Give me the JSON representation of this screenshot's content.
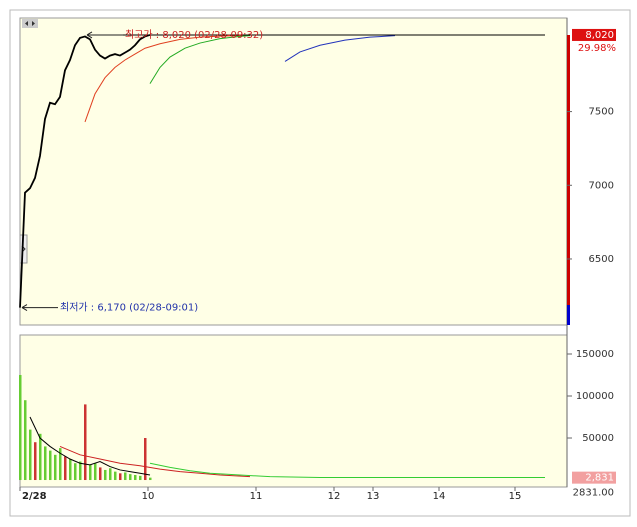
{
  "chart_data": [
    {
      "type": "line",
      "panel": "price",
      "xlim": [
        0,
        109.4
      ],
      "ylim": [
        6052,
        8135
      ],
      "xticks": [
        {
          "value": 0,
          "label": "2/28"
        },
        {
          "value": 25.6,
          "label": "10"
        },
        {
          "value": 47.2,
          "label": "11"
        },
        {
          "value": 62.8,
          "label": "12"
        },
        {
          "value": 70.6,
          "label": "13"
        },
        {
          "value": 83.8,
          "label": "14"
        },
        {
          "value": 99,
          "label": "15"
        }
      ],
      "yticks": [
        6500,
        7000,
        7500
      ],
      "last_price": {
        "value": 8020,
        "label": "8,020"
      },
      "change_label": "29.98%",
      "annotations": [
        {
          "text": "최고가 : 8,020 (02/28-09:32)",
          "x": 13,
          "value": 8020,
          "color": "#cc2222"
        },
        {
          "text": "최저가 : 6,170 (02/28-09:01)",
          "x": 0,
          "value": 6170,
          "color": "#2233aa"
        }
      ],
      "series": [
        {
          "color": "#000000",
          "x": [
            0,
            1,
            2,
            3,
            4,
            5,
            6,
            7,
            8,
            9,
            10,
            11,
            12,
            13,
            14,
            15,
            16,
            17,
            18,
            19,
            20,
            21,
            22,
            23,
            24,
            25,
            26
          ],
          "values": [
            6170,
            6950,
            6980,
            7050,
            7200,
            7450,
            7560,
            7550,
            7600,
            7780,
            7850,
            7950,
            8000,
            8010,
            7990,
            7920,
            7880,
            7860,
            7880,
            7890,
            7880,
            7900,
            7920,
            7950,
            7990,
            8010,
            8020
          ]
        },
        {
          "color": "#e04020",
          "x": [
            13,
            15,
            17,
            19,
            21,
            23,
            25,
            28,
            32,
            36,
            40,
            46
          ],
          "values": [
            7430,
            7620,
            7730,
            7800,
            7850,
            7890,
            7930,
            7960,
            7990,
            8005,
            8012,
            8018
          ]
        },
        {
          "color": "#22aa22",
          "x": [
            26,
            28,
            30,
            33,
            36,
            40,
            44,
            46
          ],
          "values": [
            7690,
            7800,
            7870,
            7930,
            7965,
            7995,
            8010,
            8015
          ]
        },
        {
          "color": "#2233bb",
          "x": [
            53,
            56,
            60,
            65,
            70,
            75
          ],
          "values": [
            7840,
            7905,
            7950,
            7985,
            8005,
            8015
          ]
        },
        {
          "color": "#000000",
          "x": [
            15,
            105
          ],
          "values": [
            8020,
            8020
          ]
        }
      ]
    },
    {
      "type": "bar",
      "panel": "volume",
      "xlim": [
        0,
        109.4
      ],
      "ylim": [
        -8300,
        172600
      ],
      "yticks": [
        50000,
        100000,
        150000
      ],
      "last_volume": {
        "value": 2831,
        "label": "2,831",
        "label2": "2831.00"
      },
      "x": [
        0,
        1,
        2,
        3,
        4,
        5,
        6,
        7,
        8,
        9,
        10,
        11,
        12,
        13,
        14,
        15,
        16,
        17,
        18,
        19,
        20,
        21,
        22,
        23,
        24,
        25,
        26
      ],
      "values": [
        125000,
        95000,
        60000,
        45000,
        55000,
        40000,
        35000,
        30000,
        38000,
        28000,
        25000,
        20000,
        22000,
        90000,
        18000,
        20000,
        15000,
        12000,
        14000,
        10000,
        8000,
        9000,
        7000,
        6000,
        5000,
        50000,
        2831
      ],
      "colors": [
        "#66cc33",
        "#66cc33",
        "#66cc33",
        "#cc3333",
        "#66cc33",
        "#66cc33",
        "#66cc33",
        "#66cc33",
        "#66cc33",
        "#cc3333",
        "#66cc33",
        "#66cc33",
        "#66cc33",
        "#cc3333",
        "#66cc33",
        "#66cc33",
        "#cc3333",
        "#66cc33",
        "#66cc33",
        "#66cc33",
        "#cc3333",
        "#66cc33",
        "#66cc33",
        "#66cc33",
        "#66cc33",
        "#cc3333",
        "#66cc33"
      ],
      "series": [
        {
          "color": "#000000",
          "x": [
            2,
            4,
            6,
            8,
            10,
            12,
            14,
            16,
            18,
            20,
            22,
            24,
            26
          ],
          "values": [
            75000,
            50000,
            40000,
            32000,
            25000,
            20000,
            18000,
            22000,
            16000,
            12000,
            10000,
            8000,
            6000
          ]
        },
        {
          "color": "#cc2222",
          "x": [
            8,
            12,
            16,
            20,
            24,
            28,
            32,
            36,
            40,
            46
          ],
          "values": [
            40000,
            30000,
            25000,
            20000,
            17000,
            13000,
            10000,
            8000,
            6000,
            4000
          ]
        },
        {
          "color": "#33cc33",
          "x": [
            26,
            30,
            34,
            38,
            44,
            50,
            60,
            80,
            105
          ],
          "values": [
            20000,
            15000,
            11000,
            8000,
            6000,
            4000,
            3000,
            3000,
            3000
          ]
        }
      ]
    }
  ]
}
